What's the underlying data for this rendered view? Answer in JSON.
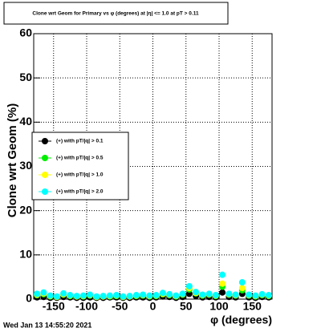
{
  "chart_data": {
    "type": "scatter",
    "title": "Clone wrt Geom for Primary vs φ (degrees) at |η| <= 1.0 at pT > 0.11",
    "xlabel": "φ (degrees)",
    "ylabel": "Clone wrt Geom (%)",
    "footer": "Wed Jan 13 14:55:20 2021",
    "x": [
      -175,
      -165,
      -155,
      -145,
      -135,
      -125,
      -115,
      -105,
      -95,
      -85,
      -75,
      -65,
      -55,
      -45,
      -35,
      -25,
      -15,
      -5,
      5,
      15,
      25,
      35,
      45,
      55,
      65,
      75,
      85,
      95,
      105,
      115,
      125,
      135,
      145,
      155,
      165,
      175
    ],
    "series": [
      {
        "name": "(+) with pT/|q| > 0.1",
        "color": "#000000",
        "values": [
          0.4,
          0.5,
          0.3,
          0.3,
          0.5,
          0.4,
          0.3,
          0.3,
          0.4,
          0.3,
          0.3,
          0.4,
          0.4,
          0.3,
          0.3,
          0.4,
          0.4,
          0.3,
          0.4,
          0.6,
          0.5,
          0.3,
          0.5,
          1.2,
          0.7,
          0.4,
          0.5,
          0.4,
          1.5,
          0.5,
          0.4,
          1.2,
          0.4,
          0.3,
          0.5,
          0.4
        ]
      },
      {
        "name": "(+) with pT/|q| > 0.5",
        "color": "#00ee00",
        "values": [
          0.9,
          1.1,
          0.6,
          0.5,
          1.0,
          0.7,
          0.6,
          0.6,
          0.8,
          0.5,
          0.6,
          0.6,
          0.7,
          0.5,
          0.6,
          0.7,
          0.8,
          0.6,
          0.7,
          1.1,
          0.9,
          0.6,
          1.0,
          2.2,
          1.3,
          0.8,
          1.0,
          0.7,
          2.8,
          1.0,
          0.8,
          2.0,
          0.8,
          0.6,
          0.9,
          0.7
        ]
      },
      {
        "name": "(+) with pT/|q| > 1.0",
        "color": "#ffff00",
        "values": [
          1.0,
          1.3,
          0.7,
          0.5,
          1.1,
          0.8,
          0.6,
          0.7,
          0.9,
          0.5,
          0.6,
          0.7,
          0.8,
          0.5,
          0.6,
          0.8,
          0.9,
          0.7,
          0.8,
          1.2,
          1.0,
          0.7,
          1.1,
          2.5,
          1.4,
          0.9,
          1.1,
          0.8,
          3.5,
          1.1,
          0.9,
          2.5,
          0.9,
          0.7,
          1.0,
          0.8
        ]
      },
      {
        "name": "(+) with pT/|q| > 2.0",
        "color": "#00ffff",
        "values": [
          1.2,
          1.5,
          0.8,
          0.6,
          1.3,
          0.9,
          0.7,
          0.8,
          1.0,
          0.6,
          0.7,
          0.8,
          0.9,
          0.6,
          0.7,
          0.9,
          1.0,
          0.8,
          0.9,
          1.4,
          1.1,
          0.8,
          1.2,
          2.9,
          1.6,
          1.0,
          1.2,
          0.9,
          5.5,
          1.2,
          1.0,
          3.8,
          1.0,
          0.8,
          1.1,
          0.9
        ]
      }
    ],
    "xlim": [
      -180,
      180
    ],
    "ylim": [
      0,
      60
    ],
    "xticks": [
      -150,
      -100,
      -50,
      0,
      50,
      100,
      150
    ],
    "yticks": [
      0,
      10,
      20,
      30,
      40,
      50,
      60
    ],
    "grid": true,
    "legend": "left"
  }
}
